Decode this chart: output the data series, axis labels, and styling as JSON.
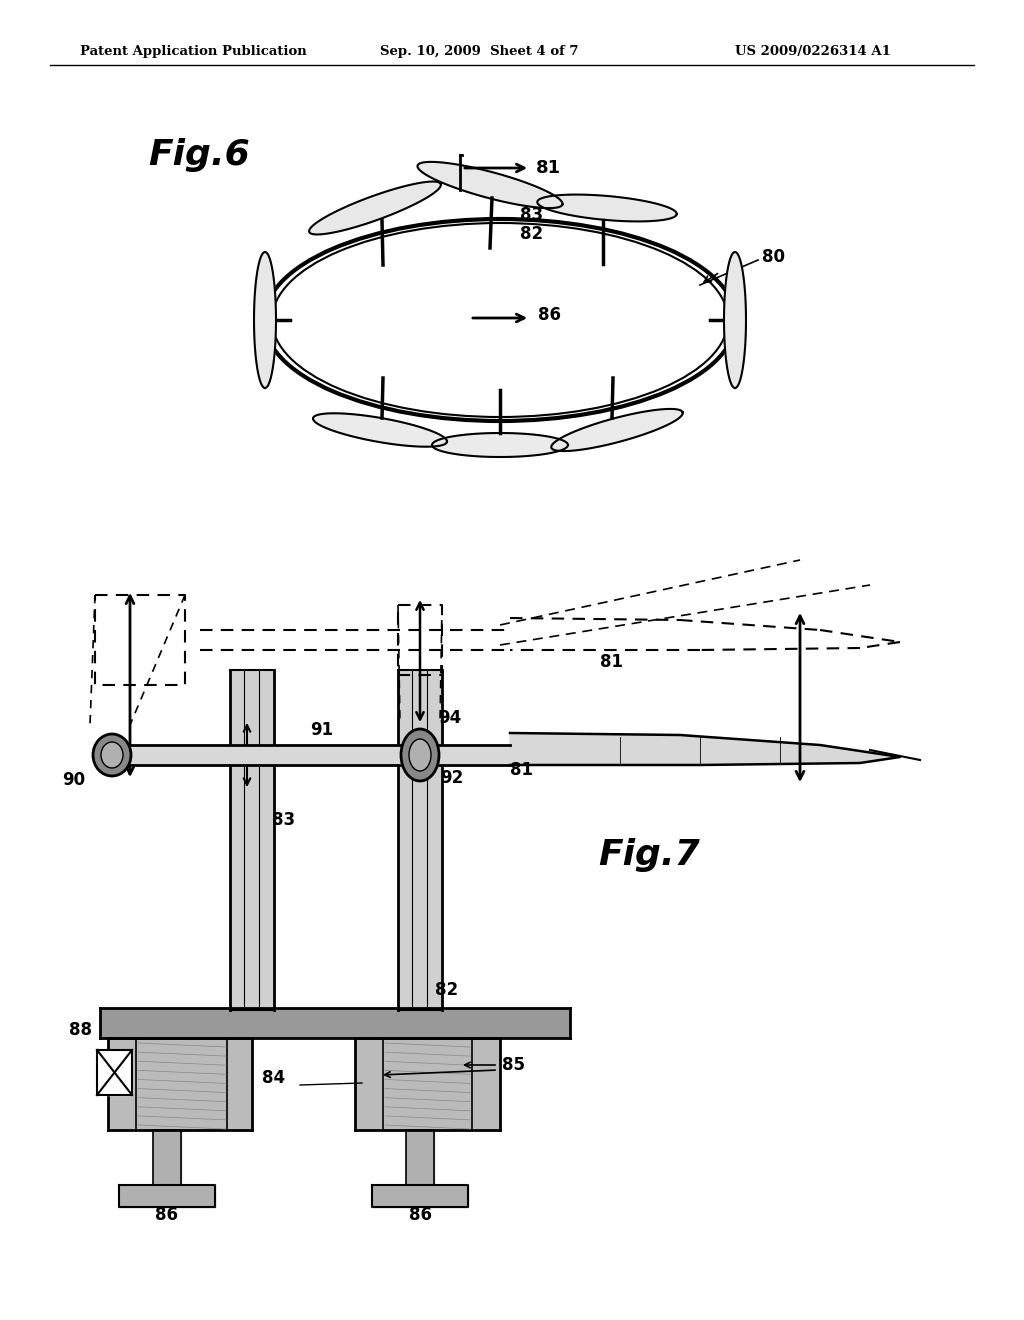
{
  "bg_color": "#ffffff",
  "line_color": "#000000",
  "header_text": "Patent Application Publication",
  "header_date": "Sep. 10, 2009  Sheet 4 of 7",
  "header_patent": "US 2009/0226314 A1",
  "fig6_label": "Fig.6",
  "fig7_label": "Fig.7"
}
